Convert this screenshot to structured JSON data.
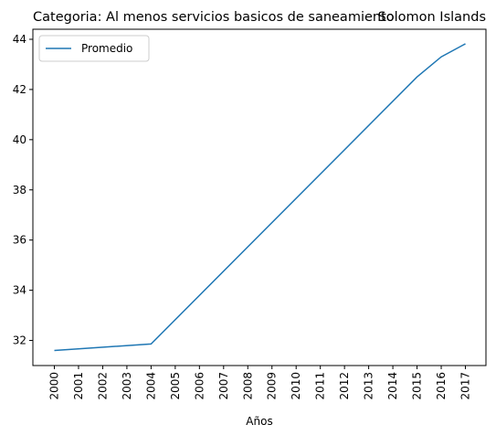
{
  "chart_data": {
    "type": "line",
    "title_left": "Categoria: Al menos servicios basicos de saneamiento",
    "title_right": "Solomon Islands",
    "xlabel": "Años",
    "ylabel": "",
    "x": [
      "2000",
      "2001",
      "2002",
      "2003",
      "2004",
      "2005",
      "2006",
      "2007",
      "2008",
      "2009",
      "2010",
      "2011",
      "2012",
      "2013",
      "2014",
      "2015",
      "2016",
      "2017"
    ],
    "series": [
      {
        "name": "Promedio",
        "color": "#1f77b4",
        "points": [
          {
            "x": "2000",
            "y": 31.6
          },
          {
            "x": "2004",
            "y": 31.86
          },
          {
            "x": "2015",
            "y": 42.5
          },
          {
            "x": "2016",
            "y": 43.3
          },
          {
            "x": "2017",
            "y": 43.82
          }
        ]
      }
    ],
    "ylim": [
      31.0,
      44.4
    ],
    "yticks": [
      32,
      34,
      36,
      38,
      40,
      42,
      44
    ],
    "legend_position": "top-left",
    "grid": false
  }
}
